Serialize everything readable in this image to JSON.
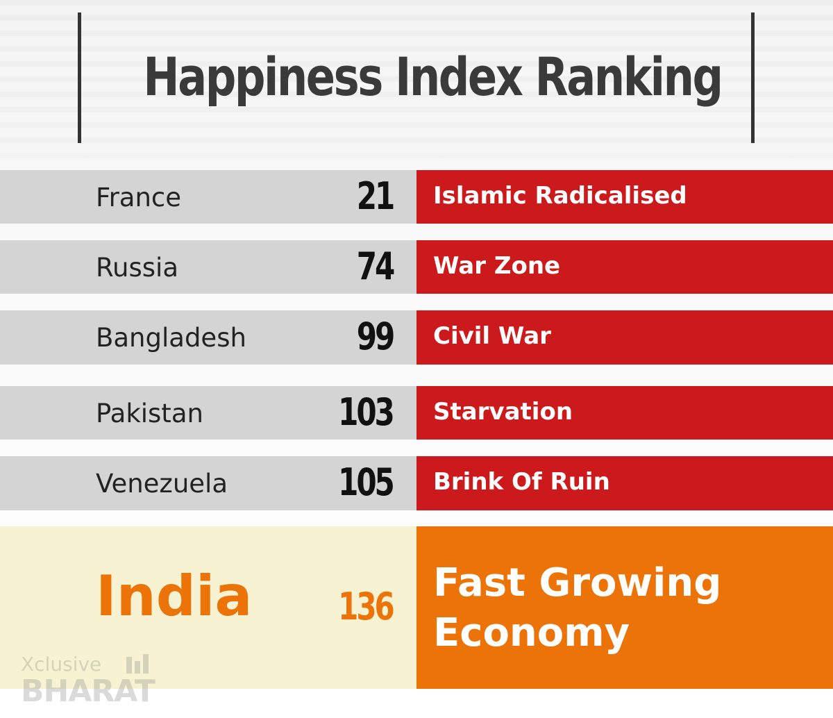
{
  "title": "Happiness Index Ranking",
  "rows": [
    {
      "country": "France",
      "rank": "21",
      "status": "Islamic Radicalised"
    },
    {
      "country": "Russia",
      "rank": "74",
      "status": "War Zone"
    },
    {
      "country": "Bangladesh",
      "rank": "99",
      "status": "Civil War"
    },
    {
      "country": "Pakistan",
      "rank": "103",
      "status": "Starvation"
    },
    {
      "country": "Venezuela",
      "rank": "105",
      "status": "Brink Of Ruin"
    }
  ],
  "highlight": {
    "country": "India",
    "rank": "136",
    "status": "Fast Growing Economy"
  },
  "watermark": {
    "line1": "Xclusive",
    "line2": "BHARAT"
  },
  "colors": {
    "row_gray": "#d4d4d4",
    "status_red": "#cc1a1c",
    "highlight_cream": "#f7f3d2",
    "highlight_orange": "#ec7308"
  }
}
